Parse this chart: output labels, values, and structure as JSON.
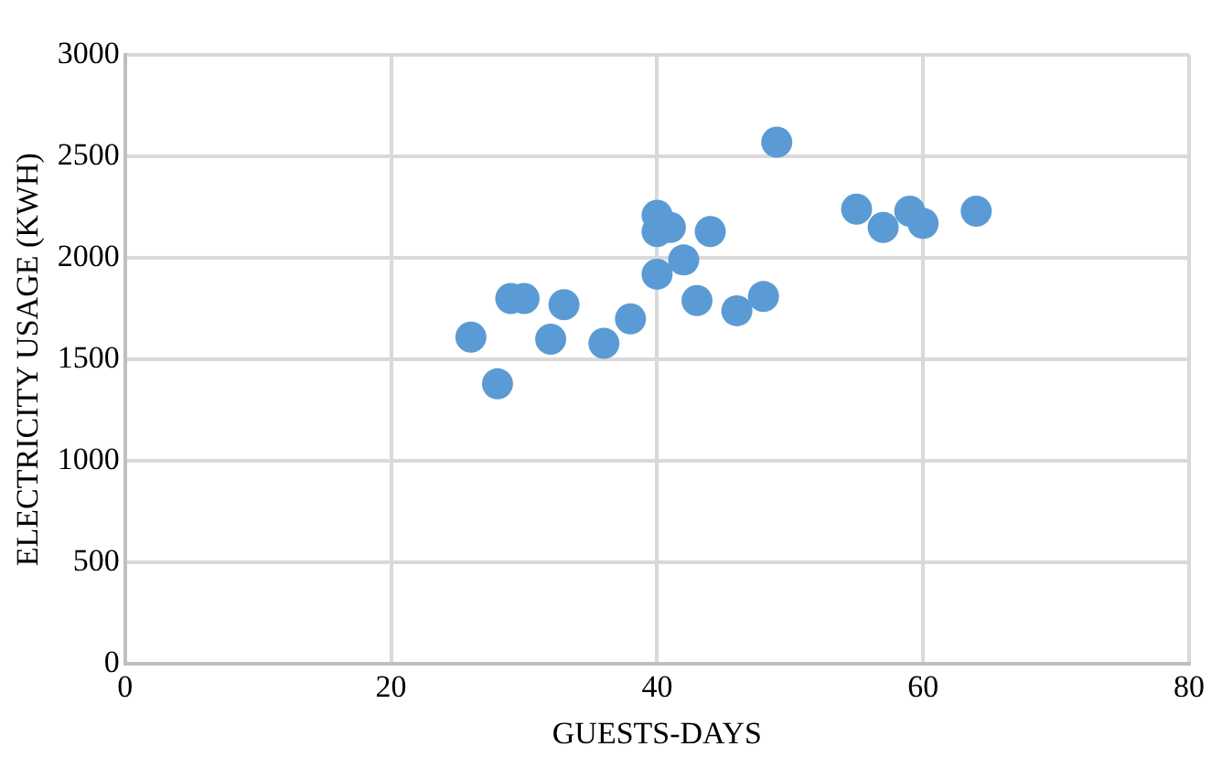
{
  "chart_data": {
    "type": "scatter",
    "xlabel": "GUESTS-DAYS",
    "ylabel": "ELECTRICITY USAGE (KWH)",
    "x": [
      26,
      28,
      29,
      30,
      32,
      33,
      36,
      38,
      40,
      40,
      40,
      41,
      42,
      43,
      44,
      46,
      48,
      49,
      55,
      57,
      59,
      60,
      64
    ],
    "series": [
      {
        "color": "#5b9bd5",
        "values": [
          1610,
          1380,
          1800,
          1800,
          1600,
          1770,
          1580,
          1700,
          1920,
          2210,
          2130,
          2150,
          1990,
          1790,
          2130,
          1740,
          1810,
          2570,
          2240,
          2150,
          2230,
          2170,
          2230
        ]
      }
    ],
    "xlim": [
      0,
      80
    ],
    "xticks": [
      0,
      20,
      40,
      60,
      80
    ],
    "ylim": [
      0,
      3000
    ],
    "yticks": [
      0,
      500,
      1000,
      1500,
      2000,
      2500,
      3000
    ],
    "grid": true,
    "legend": false,
    "marker": "circle"
  }
}
